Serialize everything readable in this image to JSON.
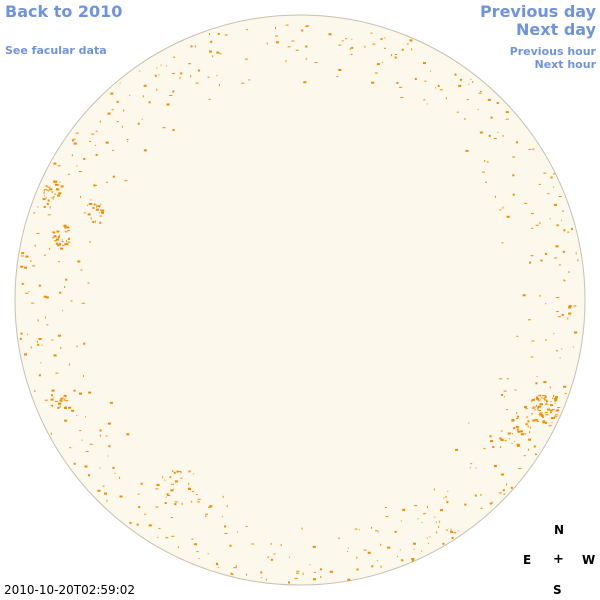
{
  "nav": {
    "back_label": "Back to 2010",
    "facular_label": "See facular data",
    "prev_day_label": "Previous day",
    "next_day_label": "Next day",
    "prev_hour_label": "Previous hour",
    "next_hour_label": "Next hour"
  },
  "compass": {
    "north": "N",
    "east": "E",
    "center": "+",
    "west": "W",
    "south": "S"
  },
  "timestamp": "2010-10-20T02:59:02",
  "colors": {
    "link": "#6f93e0",
    "disk_fill": "#fdf8ec",
    "disk_border": "#c8c0b0",
    "facula": "#f08c00"
  }
}
